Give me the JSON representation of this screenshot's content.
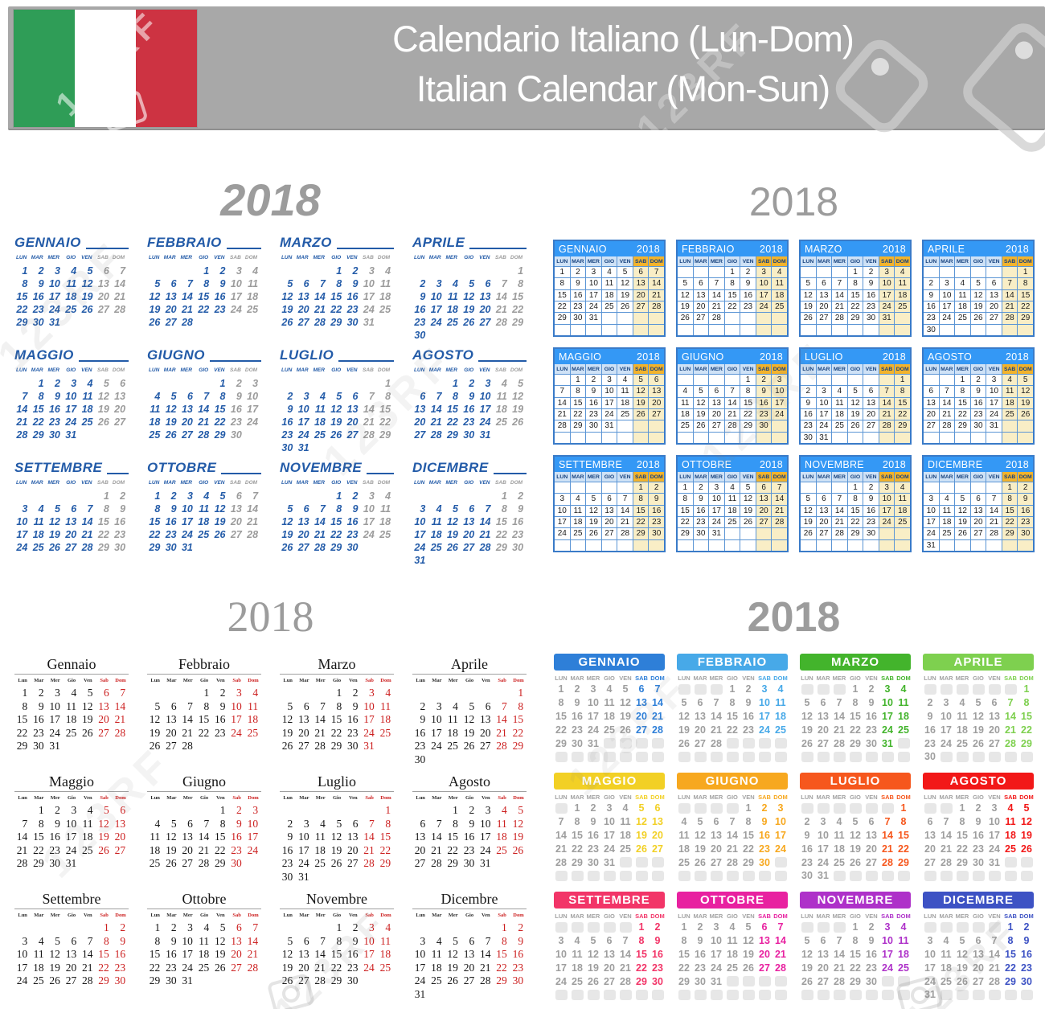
{
  "banner": {
    "line1": "Calendario Italiano (Lun-Dom)",
    "line2": "Italian Calendar (Mon-Sun)"
  },
  "year": "2018",
  "watermark": {
    "brand": "123RF"
  },
  "weekdays_upper": [
    "LUN",
    "MAR",
    "MER",
    "GIO",
    "VEN",
    "SAB",
    "DOM"
  ],
  "weekdays_title": [
    "Lun",
    "Mar",
    "Mer",
    "Gio",
    "Ven",
    "Sab",
    "Dom"
  ],
  "palette": {
    "style1_text": "#235ba8",
    "style1_weekend": "#9b9b9b",
    "style2_header": "#3498f5",
    "style2_weekday_bg": "#cfe2f6",
    "style2_weekend_header_bg": "#f2b32c",
    "style2_weekend_cell_bg": "#f9eec6",
    "style3_text": "#161616",
    "style3_weekend": "#cc2020",
    "style4_gray_day": "#9e9e9e",
    "style4_empty_square": "#e7e7e7"
  },
  "months": [
    {
      "upper": "GENNAIO",
      "title": "Gennaio",
      "days": 31,
      "start": 0,
      "color": "#2e7fd8"
    },
    {
      "upper": "FEBBRAIO",
      "title": "Febbraio",
      "days": 28,
      "start": 3,
      "color": "#47a9e8"
    },
    {
      "upper": "MARZO",
      "title": "Marzo",
      "days": 31,
      "start": 3,
      "color": "#43b42c"
    },
    {
      "upper": "APRILE",
      "title": "Aprile",
      "days": 30,
      "start": 6,
      "color": "#7ed04f"
    },
    {
      "upper": "MAGGIO",
      "title": "Maggio",
      "days": 31,
      "start": 1,
      "color": "#f2d025"
    },
    {
      "upper": "GIUGNO",
      "title": "Giugno",
      "days": 30,
      "start": 4,
      "color": "#f7a81f"
    },
    {
      "upper": "LUGLIO",
      "title": "Luglio",
      "days": 31,
      "start": 6,
      "color": "#f6571d"
    },
    {
      "upper": "AGOSTO",
      "title": "Agosto",
      "days": 31,
      "start": 2,
      "color": "#f21818"
    },
    {
      "upper": "SETTEMBRE",
      "title": "Settembre",
      "days": 30,
      "start": 5,
      "color": "#f23568"
    },
    {
      "upper": "OTTOBRE",
      "title": "Ottobre",
      "days": 31,
      "start": 0,
      "color": "#e821a0"
    },
    {
      "upper": "NOVEMBRE",
      "title": "Novembre",
      "days": 30,
      "start": 3,
      "color": "#ae31c9"
    },
    {
      "upper": "DICEMBRE",
      "title": "Dicembre",
      "days": 31,
      "start": 5,
      "color": "#3d52c4"
    }
  ]
}
